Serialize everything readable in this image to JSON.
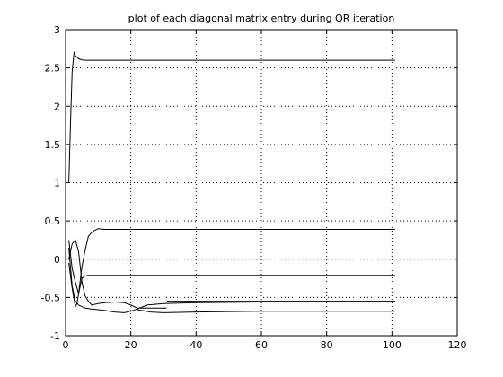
{
  "chart_data": {
    "type": "line",
    "title": "plot of each diagonal matrix entry during QR iteration",
    "xlabel": "",
    "ylabel": "",
    "xlim": [
      0,
      120
    ],
    "ylim": [
      -1,
      3
    ],
    "xticks": [
      0,
      20,
      40,
      60,
      80,
      100,
      120
    ],
    "yticks": [
      -1,
      -0.5,
      0,
      0.5,
      1,
      1.5,
      2,
      2.5,
      3
    ],
    "xtick_labels": [
      "0",
      "20",
      "40",
      "60",
      "80",
      "100",
      "120"
    ],
    "ytick_labels": [
      "-1",
      "-0.5",
      "0",
      "0.5",
      "1",
      "1.5",
      "2",
      "2.5",
      "3"
    ],
    "grid": true,
    "legend": "none",
    "series": [
      {
        "x": [
          1,
          1.6,
          2,
          2.6,
          3,
          4,
          5,
          6,
          8,
          12,
          30,
          60,
          101
        ],
        "y": [
          1.0,
          1.9,
          2.45,
          2.7,
          2.66,
          2.62,
          2.605,
          2.6,
          2.6,
          2.6,
          2.6,
          2.6,
          2.6
        ]
      },
      {
        "x": [
          1,
          2,
          3,
          4,
          5,
          6,
          7,
          8,
          9,
          10,
          12,
          15,
          20,
          30,
          60,
          101
        ],
        "y": [
          0.25,
          -0.12,
          -0.3,
          -0.45,
          -0.1,
          0.12,
          0.3,
          0.35,
          0.38,
          0.4,
          0.39,
          0.39,
          0.39,
          0.39,
          0.39,
          0.39
        ]
      },
      {
        "x": [
          1,
          2,
          3,
          3.5,
          4,
          5,
          6,
          7,
          9,
          12,
          15,
          20,
          30,
          60,
          101
        ],
        "y": [
          -0.05,
          -0.38,
          -0.62,
          -0.58,
          -0.45,
          -0.25,
          -0.22,
          -0.21,
          -0.21,
          -0.21,
          -0.21,
          -0.21,
          -0.21,
          -0.21,
          -0.21
        ]
      },
      {
        "x": [
          1,
          2,
          3,
          4,
          5,
          6,
          7,
          8,
          10,
          12,
          15,
          18,
          20,
          22,
          25,
          30,
          31
        ],
        "y": [
          0.0,
          0.2,
          0.25,
          0.1,
          -0.3,
          -0.48,
          -0.55,
          -0.6,
          -0.58,
          -0.57,
          -0.56,
          -0.57,
          -0.6,
          -0.64,
          -0.64,
          -0.64,
          -0.64
        ]
      },
      {
        "x": [
          31,
          50,
          101
        ],
        "y": [
          -0.55,
          -0.55,
          -0.55
        ]
      },
      {
        "x": [
          1,
          2,
          3,
          4,
          5,
          6,
          8,
          10,
          12,
          15,
          18,
          20,
          22,
          25,
          30,
          40,
          60,
          101
        ],
        "y": [
          0.15,
          -0.35,
          -0.55,
          -0.6,
          -0.62,
          -0.64,
          -0.65,
          -0.66,
          -0.67,
          -0.69,
          -0.7,
          -0.68,
          -0.65,
          -0.6,
          -0.58,
          -0.57,
          -0.56,
          -0.56
        ]
      },
      {
        "x": [
          22,
          26,
          30,
          40,
          60,
          101
        ],
        "y": [
          -0.66,
          -0.69,
          -0.7,
          -0.69,
          -0.68,
          -0.68
        ]
      }
    ]
  }
}
